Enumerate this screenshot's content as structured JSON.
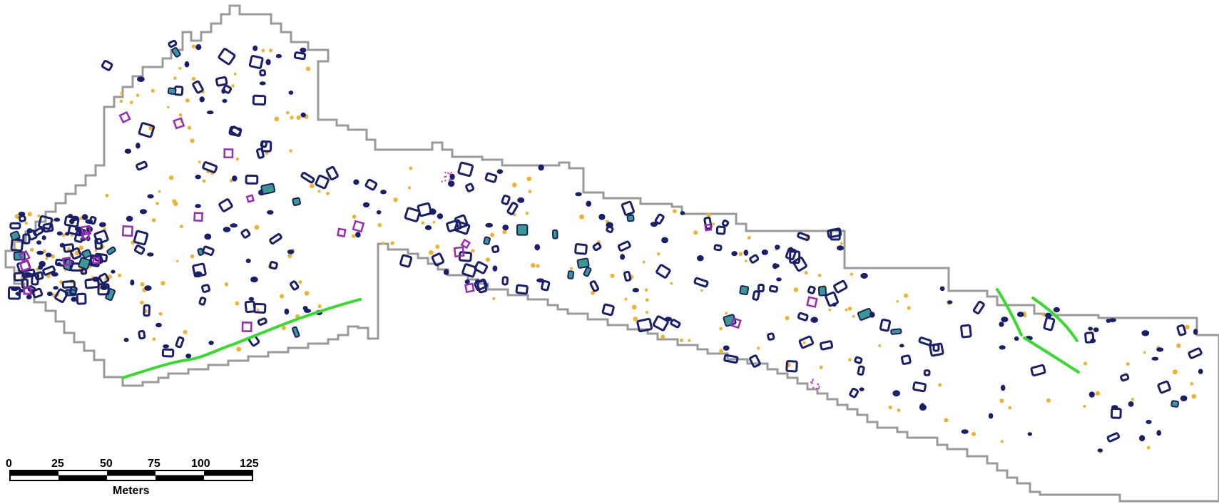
{
  "map": {
    "colors": {
      "boundary": "#9a9a9a",
      "feature_outline": "#1a1f6b",
      "feature_secondary": "#9b2bb5",
      "feature_teal": "#3a9a8f",
      "points": "#f2b12a",
      "linear_feature": "#35dc2c",
      "background": "#ffffff"
    },
    "scale_bar": {
      "ticks": [
        "0",
        "25",
        "50",
        "75",
        "100",
        "125"
      ],
      "unit": "Meters"
    }
  }
}
